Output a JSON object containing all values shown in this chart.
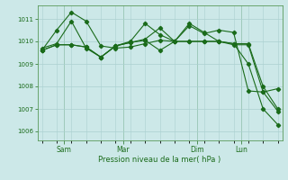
{
  "background_color": "#cce8e8",
  "grid_color": "#aad0d0",
  "line_color": "#1a6b1a",
  "xlabel_text": "Pression niveau de la mer( hPa )",
  "yticks": [
    1006,
    1007,
    1008,
    1009,
    1010,
    1011
  ],
  "ylim": [
    1005.6,
    1011.6
  ],
  "xlim": [
    -0.3,
    16.3
  ],
  "xtick_labels": [
    "Sam",
    "Mar",
    "Dim",
    "Lun"
  ],
  "xtick_positions": [
    1.5,
    5.5,
    10.5,
    13.5
  ],
  "series1_x": [
    0,
    1,
    2,
    3,
    4,
    5,
    6,
    7,
    8,
    9,
    10,
    11,
    12,
    13,
    14,
    15,
    16
  ],
  "series1_y": [
    1009.6,
    1010.5,
    1011.3,
    1010.9,
    1009.8,
    1009.7,
    1009.75,
    1009.9,
    1010.05,
    1010.0,
    1010.8,
    1010.4,
    1010.0,
    1009.9,
    1009.0,
    1007.0,
    1006.3
  ],
  "series2_x": [
    0,
    1,
    2,
    3,
    4,
    5,
    6,
    7,
    8,
    9,
    10,
    11,
    12,
    13,
    14,
    15,
    16
  ],
  "series2_y": [
    1009.7,
    1009.9,
    1010.9,
    1009.7,
    1009.3,
    1009.8,
    1010.0,
    1010.8,
    1010.3,
    1010.0,
    1010.7,
    1010.35,
    1010.5,
    1010.4,
    1007.8,
    1007.75,
    1007.9
  ],
  "series3_x": [
    0,
    1,
    2,
    3,
    4,
    5,
    6,
    7,
    8,
    9,
    10,
    11,
    12,
    13,
    14,
    15,
    16
  ],
  "series3_y": [
    1009.6,
    1009.85,
    1009.85,
    1009.75,
    1009.3,
    1009.8,
    1009.95,
    1010.1,
    1010.6,
    1010.0,
    1010.0,
    1010.0,
    1010.0,
    1009.9,
    1009.9,
    1008.0,
    1007.0
  ],
  "series4_x": [
    0,
    1,
    2,
    3,
    4,
    5,
    6,
    7,
    8,
    9,
    10,
    11,
    12,
    13,
    14,
    15,
    16
  ],
  "series4_y": [
    1009.6,
    1009.85,
    1009.85,
    1009.75,
    1009.3,
    1009.8,
    1009.95,
    1010.05,
    1009.6,
    1010.0,
    1010.0,
    1010.0,
    1010.0,
    1009.85,
    1009.85,
    1007.75,
    1006.9
  ]
}
